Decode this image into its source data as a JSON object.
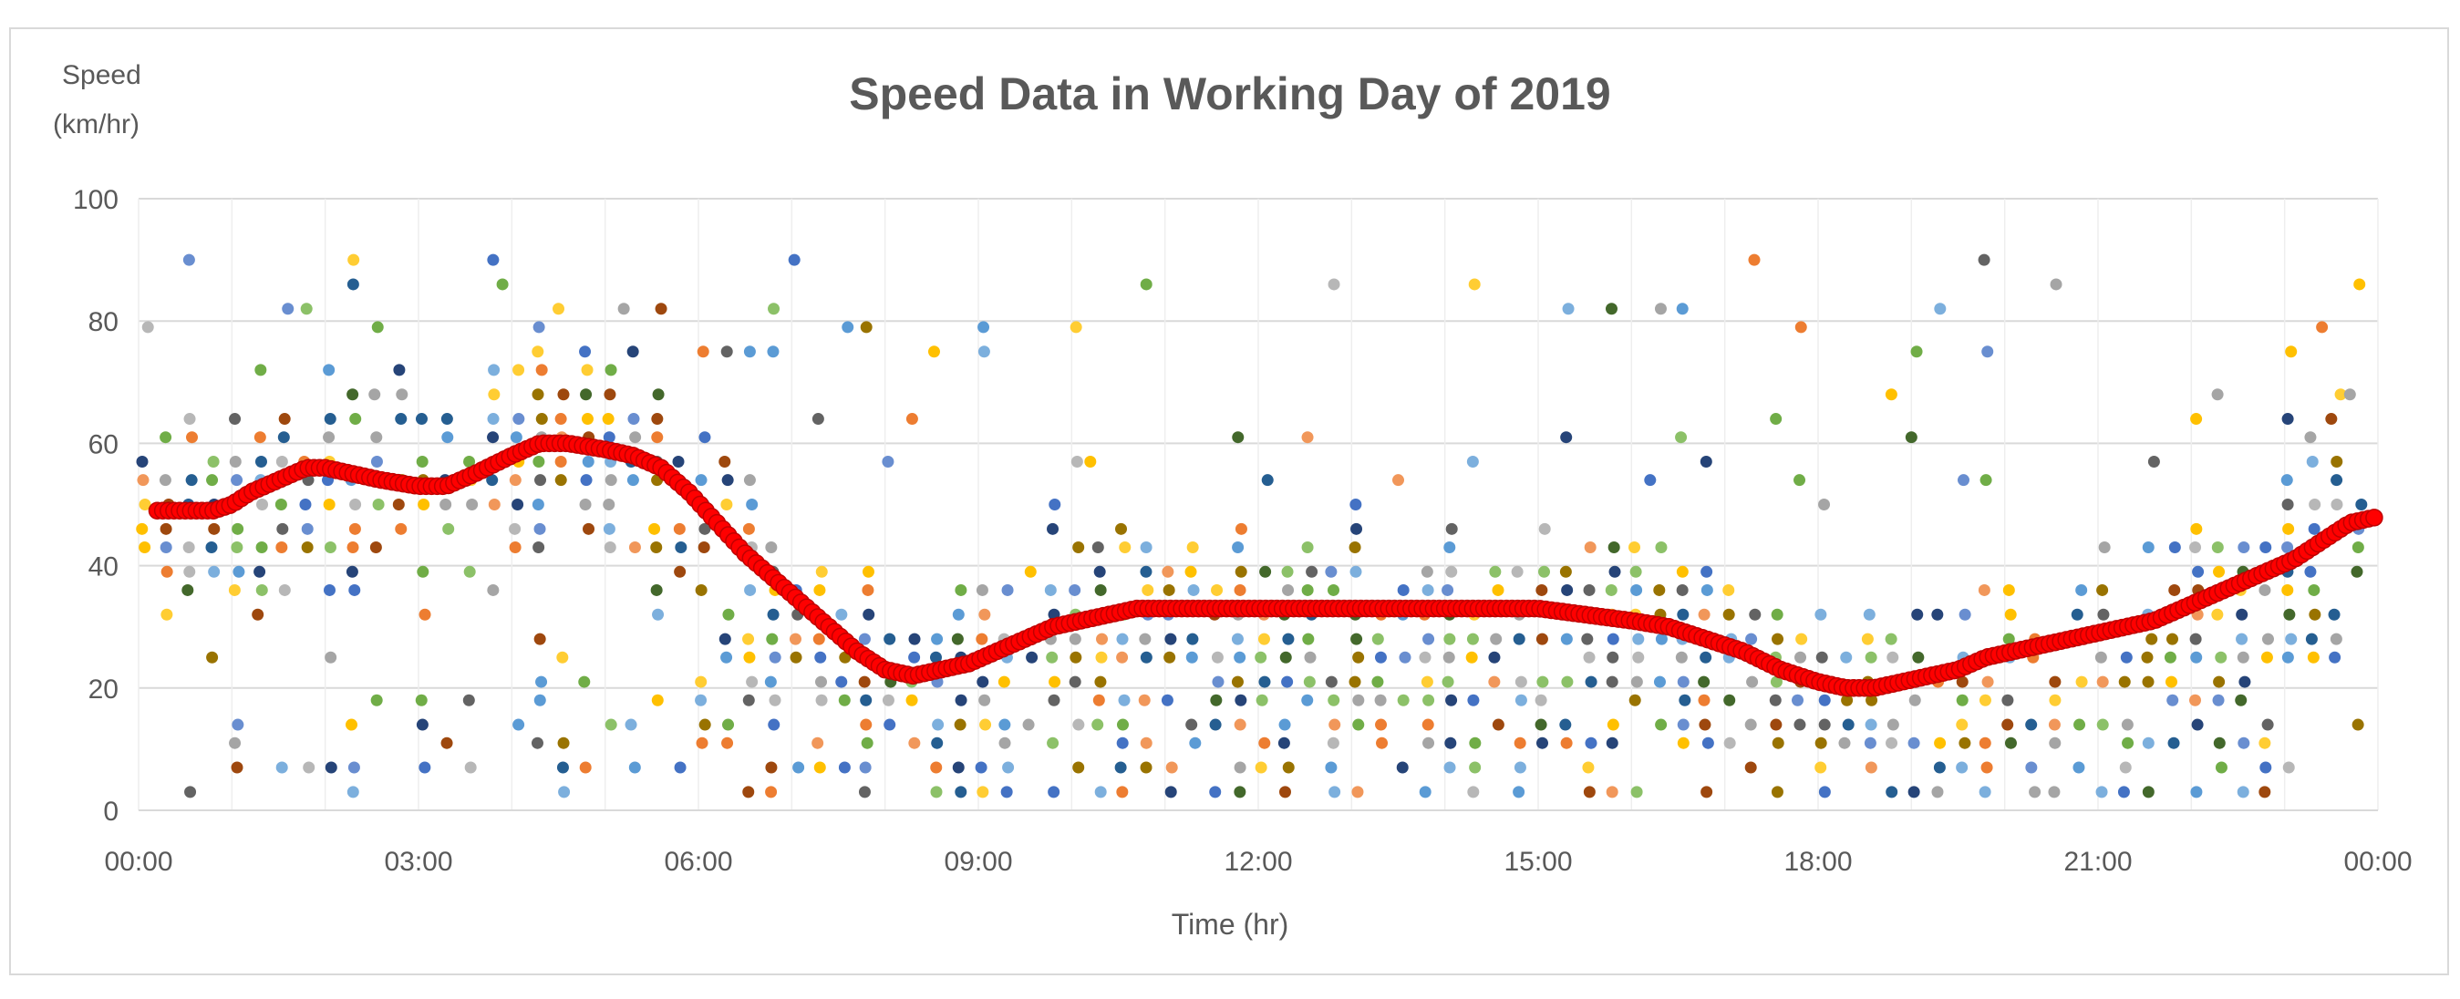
{
  "chart_data": {
    "type": "scatter",
    "title": "Speed Data in Working  Day of 2019",
    "ylabel_line1": "Speed",
    "ylabel_line2": "(km/hr)",
    "xlabel": "Time (hr)",
    "xlim": [
      0,
      24
    ],
    "ylim": [
      0,
      100
    ],
    "x_ticks": [
      {
        "value": 0,
        "label": "00:00"
      },
      {
        "value": 3,
        "label": "03:00"
      },
      {
        "value": 6,
        "label": "06:00"
      },
      {
        "value": 9,
        "label": "09:00"
      },
      {
        "value": 12,
        "label": "12:00"
      },
      {
        "value": 15,
        "label": "15:00"
      },
      {
        "value": 18,
        "label": "18:00"
      },
      {
        "value": 21,
        "label": "21:00"
      },
      {
        "value": 24,
        "label": "00:00"
      }
    ],
    "y_ticks": [
      {
        "value": 0,
        "label": "0"
      },
      {
        "value": 20,
        "label": "20"
      },
      {
        "value": 40,
        "label": "40"
      },
      {
        "value": 60,
        "label": "60"
      },
      {
        "value": 80,
        "label": "80"
      },
      {
        "value": 100,
        "label": "100"
      }
    ],
    "grid": true,
    "legend": "none",
    "colors": {
      "mean_series": "#ff0000",
      "mean_series_edge": "#c00000",
      "grid": "#d9d9d9",
      "text": "#595959",
      "scatter_palette": [
        "#4472c4",
        "#ed7d31",
        "#a5a5a5",
        "#ffc000",
        "#5b9bd5",
        "#70ad47",
        "#264478",
        "#9e480e",
        "#636363",
        "#997300",
        "#255e91",
        "#43682b",
        "#698ed0",
        "#f1975a",
        "#b7b7b7",
        "#ffcd33",
        "#7cafdd",
        "#8cc168"
      ]
    },
    "series": [
      {
        "role": "mean",
        "x": [
          0.2,
          0.5,
          0.8,
          1.0,
          1.2,
          1.5,
          1.8,
          2.0,
          2.3,
          2.6,
          3.0,
          3.3,
          3.6,
          4.0,
          4.3,
          4.6,
          5.0,
          5.3,
          5.6,
          5.9,
          6.2,
          6.5,
          6.8,
          7.1,
          7.4,
          7.7,
          8.0,
          8.3,
          8.6,
          8.9,
          9.2,
          9.5,
          9.8,
          10.1,
          10.4,
          10.7,
          11.0,
          11.5,
          12.0,
          12.5,
          13.0,
          13.5,
          14.0,
          14.5,
          15.0,
          15.5,
          16.0,
          16.4,
          16.8,
          17.2,
          17.6,
          18.0,
          18.3,
          18.6,
          18.9,
          19.2,
          19.5,
          19.8,
          20.1,
          20.4,
          20.7,
          21.0,
          21.3,
          21.6,
          21.9,
          22.2,
          22.5,
          22.8,
          23.1,
          23.4,
          23.7,
          24.0
        ],
        "y": [
          49,
          49,
          49,
          50,
          52,
          54,
          56,
          56,
          55,
          54,
          53,
          53,
          55,
          58,
          60,
          60,
          59,
          58,
          56,
          52,
          47,
          42,
          38,
          34,
          30,
          26,
          23,
          22,
          23,
          24,
          26,
          28,
          30,
          31,
          32,
          33,
          33,
          33,
          33,
          33,
          33,
          33,
          33,
          33,
          33,
          32,
          31,
          30,
          28,
          26,
          23,
          21,
          20,
          20,
          21,
          22,
          23,
          25,
          26,
          27,
          28,
          29,
          30,
          31,
          33,
          35,
          37,
          39,
          41,
          44,
          47,
          48
        ]
      }
    ],
    "scatter_note_values": {
      "speed_levels": [
        3,
        7,
        11,
        14,
        18,
        21,
        25,
        28,
        32,
        36,
        39,
        43,
        46,
        50,
        54,
        57,
        61,
        64,
        68,
        72,
        75,
        79,
        82,
        86,
        90
      ],
      "scatter_step_hr": 0.25,
      "outliers": [
        {
          "x": 3.8,
          "y": 90
        },
        {
          "x": 3.9,
          "y": 86
        },
        {
          "x": 2.3,
          "y": 86
        },
        {
          "x": 4.5,
          "y": 82
        },
        {
          "x": 5.2,
          "y": 82
        },
        {
          "x": 5.6,
          "y": 82
        },
        {
          "x": 1.6,
          "y": 82
        },
        {
          "x": 1.8,
          "y": 82
        },
        {
          "x": 7.6,
          "y": 79
        },
        {
          "x": 7.8,
          "y": 79
        },
        {
          "x": 0.1,
          "y": 79
        },
        {
          "x": 23.4,
          "y": 79
        },
        {
          "x": 15.3,
          "y": 61
        },
        {
          "x": 19.0,
          "y": 61
        },
        {
          "x": 14.3,
          "y": 57
        },
        {
          "x": 10.2,
          "y": 57
        },
        {
          "x": 21.6,
          "y": 57
        },
        {
          "x": 13.5,
          "y": 54
        },
        {
          "x": 16.2,
          "y": 54
        },
        {
          "x": 17.8,
          "y": 54
        },
        {
          "x": 12.1,
          "y": 54
        },
        {
          "x": 23.6,
          "y": 68
        },
        {
          "x": 23.7,
          "y": 68
        },
        {
          "x": 23.5,
          "y": 64
        }
      ]
    }
  }
}
